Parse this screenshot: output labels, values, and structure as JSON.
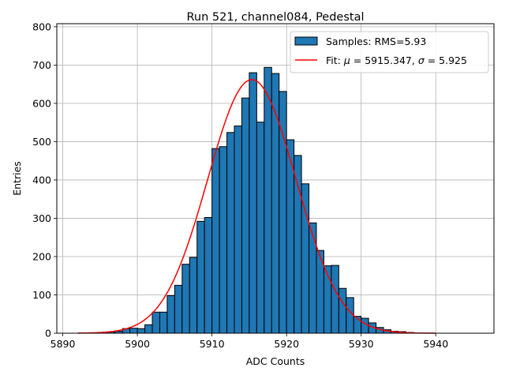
{
  "chart_data": {
    "type": "histogram",
    "title": "Run 521, channel084, Pedestal",
    "xlabel": "ADC Counts",
    "ylabel": "Entries",
    "xlim": [
      5889.2,
      5947.8
    ],
    "ylim": [
      0,
      808
    ],
    "xticks": [
      5890,
      5900,
      5910,
      5920,
      5930,
      5940
    ],
    "yticks": [
      0,
      100,
      200,
      300,
      400,
      500,
      600,
      700,
      800
    ],
    "grid": true,
    "legend_position": "top-right",
    "histogram": {
      "name": "Samples: RMS=5.93",
      "color": "#1f77b4",
      "edge_color": "#000000",
      "bin_start": 5892,
      "bin_width": 1,
      "counts": [
        0,
        0,
        1,
        2,
        3,
        5,
        12,
        13,
        12,
        22,
        55,
        55,
        98,
        125,
        180,
        198,
        292,
        302,
        482,
        487,
        524,
        541,
        614,
        680,
        551,
        694,
        678,
        631,
        505,
        464,
        390,
        288,
        216,
        176,
        177,
        117,
        93,
        44,
        39,
        27,
        15,
        9,
        5,
        4,
        2,
        1,
        0,
        0
      ]
    },
    "fit": {
      "name": "Fit: μ = 5915.347, σ = 5.925",
      "label_prefix": "Fit: ",
      "mu_symbol": "μ",
      "mu_text": " = 5915.347, ",
      "sigma_symbol": "σ",
      "sigma_text": " = 5.925",
      "color": "#ff0000",
      "mu": 5915.347,
      "sigma": 5.925,
      "amplitude": 662,
      "x_range": [
        5892,
        5940
      ]
    }
  }
}
